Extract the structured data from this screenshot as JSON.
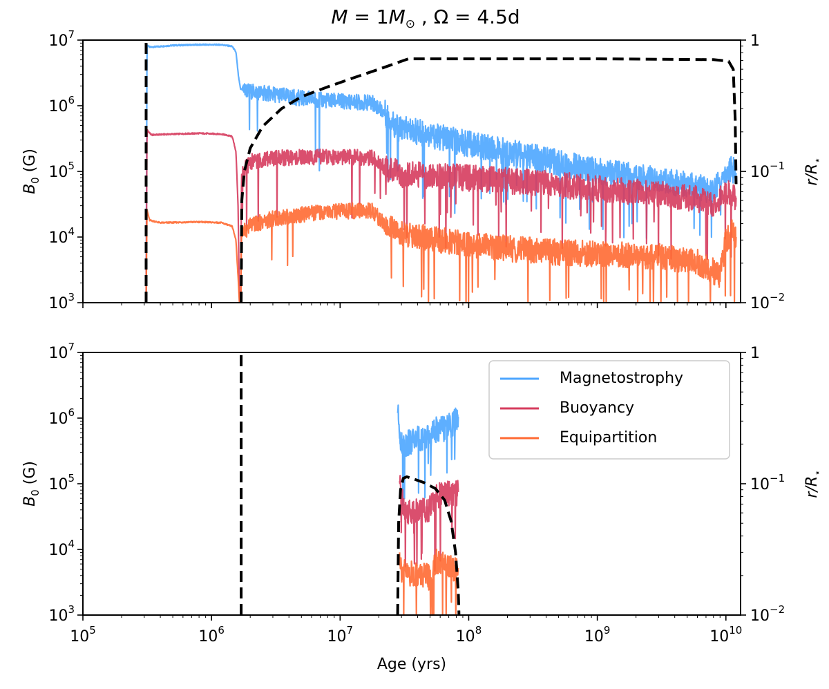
{
  "chart_data": {
    "title": "M = 1M☉ , Ω = 4.5d",
    "title_parts": {
      "m": "M",
      "eq": " = 1",
      "msun": "M",
      "sun": "⊙",
      "sep": " , ",
      "omega": "Ω",
      "omega_val": " = 4.5d"
    },
    "xlabel": "Age (yrs)",
    "xscale": "log",
    "xlim": [
      100000,
      13000000000
    ],
    "x_ticks": [
      {
        "value": 100000,
        "base": "10",
        "exp": "5"
      },
      {
        "value": 1000000,
        "base": "10",
        "exp": "6"
      },
      {
        "value": 10000000,
        "base": "10",
        "exp": "7"
      },
      {
        "value": 100000000,
        "base": "10",
        "exp": "8"
      },
      {
        "value": 1000000000,
        "base": "10",
        "exp": "9"
      },
      {
        "value": 10000000000,
        "base": "10",
        "exp": "10"
      }
    ],
    "colors": {
      "magnetostrophy": "#4da6ff",
      "buoyancy": "#d63c5e",
      "equipartition": "#ff6a33",
      "radius": "#000000"
    },
    "legend": {
      "location": "upper right of bottom panel",
      "entries": [
        {
          "label": "Magnetostrophy",
          "color": "#4da6ff"
        },
        {
          "label": "Buoyancy",
          "color": "#d63c5e"
        },
        {
          "label": "Equipartition",
          "color": "#ff6a33"
        }
      ]
    },
    "panels": [
      {
        "type": "line",
        "ylabel_left": {
          "main": "B",
          "sub": "0",
          "rest": " (G)"
        },
        "ylabel_right": {
          "main": "r/R",
          "sub": "⋆"
        },
        "yscale_left": "log",
        "ylim_left": [
          1000,
          10000000
        ],
        "yscale_right": "log",
        "ylim_right": [
          0.01,
          1
        ],
        "y_ticks_left": [
          {
            "value": 1000,
            "base": "10",
            "exp": "3"
          },
          {
            "value": 10000,
            "base": "10",
            "exp": "4"
          },
          {
            "value": 100000,
            "base": "10",
            "exp": "5"
          },
          {
            "value": 1000000,
            "base": "10",
            "exp": "6"
          },
          {
            "value": 10000000,
            "base": "10",
            "exp": "7"
          }
        ],
        "y_ticks_right": [
          {
            "value": 0.01,
            "base": "10",
            "exp": "−2"
          },
          {
            "value": 0.1,
            "base": "10",
            "exp": "−1"
          },
          {
            "value": 1,
            "base": "1",
            "exp": ""
          }
        ],
        "series": [
          {
            "name": "Magnetostrophy",
            "key": "magnetostrophy",
            "segments": [
              [
                [
                  310000,
                  1000
                ],
                [
                  315000,
                  8500000
                ],
                [
                  330000,
                  7800000
                ],
                [
                  400000,
                  8000000
                ],
                [
                  500000,
                  8300000
                ],
                [
                  800000,
                  8500000
                ],
                [
                  1200000,
                  8500000
                ],
                [
                  1450000,
                  8000000
                ],
                [
                  1550000,
                  6500000
                ],
                [
                  1620000,
                  2800000
                ],
                [
                  1680000,
                  1800000
                ],
                [
                  2000000,
                  1650000
                ],
                [
                  3000000,
                  1500000
                ],
                [
                  5000000,
                  1300000
                ],
                [
                  8000000,
                  1200000
                ],
                [
                  12000000,
                  1150000
                ],
                [
                  18000000,
                  1100000
                ],
                [
                  22000000,
                  800000
                ],
                [
                  28000000,
                  450000
                ],
                [
                  40000000,
                  400000
                ],
                [
                  60000000,
                  330000
                ],
                [
                  100000000,
                  260000
                ],
                [
                  200000000,
                  200000
                ],
                [
                  400000000,
                  150000
                ],
                [
                  800000000,
                  110000
                ],
                [
                  1500000000,
                  90000
                ],
                [
                  3000000000,
                  75000
                ],
                [
                  6000000000,
                  58000
                ],
                [
                  8000000000,
                  50000
                ],
                [
                  9500000000,
                  85000
                ],
                [
                  11000000000,
                  110000
                ],
                [
                  12000000000,
                  95000
                ]
              ]
            ]
          },
          {
            "name": "Buoyancy",
            "key": "buoyancy",
            "segments": [
              [
                [
                  310000,
                  1000
                ],
                [
                  315000,
                  430000
                ],
                [
                  340000,
                  360000
                ],
                [
                  500000,
                  370000
                ],
                [
                  800000,
                  380000
                ],
                [
                  1200000,
                  370000
                ],
                [
                  1450000,
                  340000
                ],
                [
                  1550000,
                  200000
                ],
                [
                  1610000,
                  30000
                ],
                [
                  1650000,
                  1000
                ]
              ],
              [
                [
                  1690000,
                  1000
                ],
                [
                  1710000,
                  90000
                ],
                [
                  2000000,
                  140000
                ],
                [
                  3000000,
                  160000
                ],
                [
                  6000000,
                  165000
                ],
                [
                  12000000,
                  165000
                ],
                [
                  18000000,
                  160000
                ],
                [
                  23000000,
                  110000
                ],
                [
                  30000000,
                  90000
                ],
                [
                  60000000,
                  85000
                ],
                [
                  150000000,
                  75000
                ],
                [
                  400000000,
                  65000
                ],
                [
                  1000000000,
                  55000
                ],
                [
                  3000000000,
                  45000
                ],
                [
                  6000000000,
                  38000
                ],
                [
                  8000000000,
                  30000
                ],
                [
                  10000000000,
                  50000
                ],
                [
                  12000000000,
                  40000
                ]
              ]
            ]
          },
          {
            "name": "Equipartition",
            "key": "equipartition",
            "segments": [
              [
                [
                  310000,
                  1000
                ],
                [
                  315000,
                  26000
                ],
                [
                  330000,
                  18000
                ],
                [
                  400000,
                  16500
                ],
                [
                  800000,
                  17000
                ],
                [
                  1200000,
                  16500
                ],
                [
                  1450000,
                  14500
                ],
                [
                  1550000,
                  9000
                ],
                [
                  1620000,
                  2000
                ],
                [
                  1650000,
                  1000
                ]
              ],
              [
                [
                  1690000,
                  1000
                ],
                [
                  1710000,
                  11000
                ],
                [
                  2000000,
                  15000
                ],
                [
                  3000000,
                  19000
                ],
                [
                  6000000,
                  23000
                ],
                [
                  12000000,
                  25000
                ],
                [
                  18000000,
                  25000
                ],
                [
                  23000000,
                  14000
                ],
                [
                  30000000,
                  11000
                ],
                [
                  60000000,
                  9000
                ],
                [
                  150000000,
                  7000
                ],
                [
                  400000000,
                  6000
                ],
                [
                  1000000000,
                  5500
                ],
                [
                  3000000000,
                  5000
                ],
                [
                  6000000000,
                  4200
                ],
                [
                  8000000000,
                  3000
                ],
                [
                  9000000000,
                  2500
                ],
                [
                  10000000000,
                  9000
                ],
                [
                  11000000000,
                  12000
                ],
                [
                  12000000000,
                  10000
                ]
              ]
            ]
          },
          {
            "name": "r/R⋆",
            "key": "radius",
            "dashed": true,
            "axis": "right",
            "segments": [
              [
                [
                  310000,
                  0.01
                ],
                [
                  310000,
                  1
                ]
              ],
              [
                [
                  1700000,
                  0.01
                ],
                [
                  1720000,
                  0.06
                ],
                [
                  1800000,
                  0.1
                ],
                [
                  2000000,
                  0.15
                ],
                [
                  2500000,
                  0.22
                ],
                [
                  3500000,
                  0.3
                ],
                [
                  5000000,
                  0.37
                ],
                [
                  8000000,
                  0.44
                ],
                [
                  13000000,
                  0.52
                ],
                [
                  20000000,
                  0.6
                ],
                [
                  30000000,
                  0.69
                ],
                [
                  34000000,
                  0.72
                ],
                [
                  100000000,
                  0.72
                ],
                [
                  1000000000,
                  0.72
                ],
                [
                  8000000000,
                  0.71
                ],
                [
                  10500000000,
                  0.69
                ],
                [
                  11400000000,
                  0.6
                ],
                [
                  11800000000,
                  0.25
                ],
                [
                  12000000000,
                  0.08
                ]
              ]
            ]
          }
        ]
      },
      {
        "type": "line",
        "ylabel_left": {
          "main": "B",
          "sub": "0",
          "rest": " (G)"
        },
        "ylabel_right": {
          "main": "r/R",
          "sub": "⋆"
        },
        "yscale_left": "log",
        "ylim_left": [
          1000,
          10000000
        ],
        "yscale_right": "log",
        "ylim_right": [
          0.01,
          1
        ],
        "y_ticks_left": [
          {
            "value": 1000,
            "base": "10",
            "exp": "3"
          },
          {
            "value": 10000,
            "base": "10",
            "exp": "4"
          },
          {
            "value": 100000,
            "base": "10",
            "exp": "5"
          },
          {
            "value": 1000000,
            "base": "10",
            "exp": "6"
          },
          {
            "value": 10000000,
            "base": "10",
            "exp": "7"
          }
        ],
        "y_ticks_right": [
          {
            "value": 0.01,
            "base": "10",
            "exp": "−2"
          },
          {
            "value": 0.1,
            "base": "10",
            "exp": "−1"
          },
          {
            "value": 1,
            "base": "1",
            "exp": ""
          }
        ],
        "series": [
          {
            "name": "Magnetostrophy",
            "key": "magnetostrophy",
            "segments": [
              [
                [
                  28000000,
                  1200000
                ],
                [
                  29000000,
                  700000
                ],
                [
                  30000000,
                  380000
                ],
                [
                  33000000,
                  420000
                ],
                [
                  40000000,
                  480000
                ],
                [
                  50000000,
                  500000
                ],
                [
                  55000000,
                  650000
                ],
                [
                  65000000,
                  700000
                ],
                [
                  75000000,
                  800000
                ],
                [
                  83000000,
                  1050000
                ]
              ]
            ]
          },
          {
            "name": "Buoyancy",
            "key": "buoyancy",
            "segments": [
              [
                [
                  29000000,
                  110000
                ],
                [
                  30000000,
                  60000
                ],
                [
                  33000000,
                  38000
                ],
                [
                  40000000,
                  40000
                ],
                [
                  50000000,
                  42000
                ],
                [
                  55000000,
                  65000
                ],
                [
                  65000000,
                  70000
                ],
                [
                  75000000,
                  70000
                ],
                [
                  83000000,
                  75000
                ]
              ]
            ]
          },
          {
            "name": "Equipartition",
            "key": "equipartition",
            "segments": [
              [
                [
                  29000000,
                  9000
                ],
                [
                  30000000,
                  5000
                ],
                [
                  33000000,
                  4200
                ],
                [
                  40000000,
                  4200
                ],
                [
                  48000000,
                  3800
                ],
                [
                  52000000,
                  3500
                ],
                [
                  55000000,
                  6500
                ],
                [
                  65000000,
                  5500
                ],
                [
                  75000000,
                  5000
                ],
                [
                  83000000,
                  5200
                ]
              ]
            ]
          },
          {
            "name": "r/R⋆",
            "key": "radius",
            "dashed": true,
            "axis": "right",
            "segments": [
              [
                [
                  1700000,
                  0.01
                ],
                [
                  1700000,
                  1
                ]
              ],
              [
                [
                  28000000,
                  0.01
                ],
                [
                  28500000,
                  0.05
                ],
                [
                  29500000,
                  0.09
                ],
                [
                  31000000,
                  0.11
                ],
                [
                  33000000,
                  0.113
                ],
                [
                  38000000,
                  0.108
                ],
                [
                  45000000,
                  0.102
                ],
                [
                  55000000,
                  0.092
                ],
                [
                  65000000,
                  0.075
                ],
                [
                  73000000,
                  0.052
                ],
                [
                  79000000,
                  0.03
                ],
                [
                  83000000,
                  0.015
                ],
                [
                  84000000,
                  0.01
                ]
              ]
            ]
          }
        ]
      }
    ]
  }
}
